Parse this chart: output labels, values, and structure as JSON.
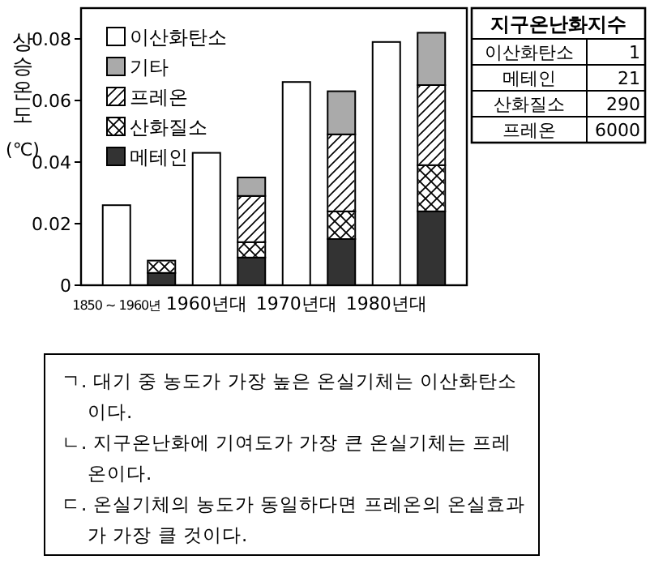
{
  "chart_data": [
    {
      "type": "bar",
      "stacked": true,
      "ylabel": "상승온도 (℃)",
      "categories": [
        "1850 ~ 1960년",
        null,
        "1960년대",
        null,
        "1970년대",
        null,
        "1980년대",
        null
      ],
      "series": [
        {
          "name": "이산화탄소",
          "color": "#ffffff",
          "values": [
            0.026,
            null,
            0.043,
            null,
            0.066,
            null,
            0.079,
            null
          ]
        },
        {
          "name": "메테인",
          "color": "#333333",
          "values": [
            null,
            0.004,
            null,
            0.009,
            null,
            0.015,
            null,
            0.024
          ]
        },
        {
          "name": "산화질소",
          "color": "#ffffff",
          "values": [
            null,
            0.004,
            null,
            0.005,
            null,
            0.009,
            null,
            0.015
          ]
        },
        {
          "name": "프레온",
          "color": "#ffffff",
          "values": [
            null,
            null,
            null,
            0.015,
            null,
            0.025,
            null,
            0.026
          ]
        },
        {
          "name": "기타",
          "color": "#aaaaaa",
          "values": [
            null,
            null,
            null,
            0.006,
            null,
            0.014,
            null,
            0.017
          ]
        }
      ],
      "ylim": [
        0,
        0.09
      ],
      "yticks": [
        0,
        0.02,
        0.04,
        0.06,
        0.08
      ],
      "legend": "top left",
      "annotations": [
        "ㄱ. 대기 중 농도가 가장 높은 온실기체는 이산화탄소이다.",
        "ㄴ. 지구온난화에 기여도가 가장 큰 온실기체는 프레온이다.",
        "ㄷ. 온실기체의 농도가 동일하다면 프레온의 온실효과가 가장 클 것이다."
      ]
    },
    {
      "type": "other",
      "title": "지구온난화지수",
      "categories": [
        "이산화탄소",
        "메테인",
        "산화질소",
        "프레온"
      ],
      "values": [
        1,
        21,
        290,
        6000
      ],
      "data_labels": true
    }
  ]
}
